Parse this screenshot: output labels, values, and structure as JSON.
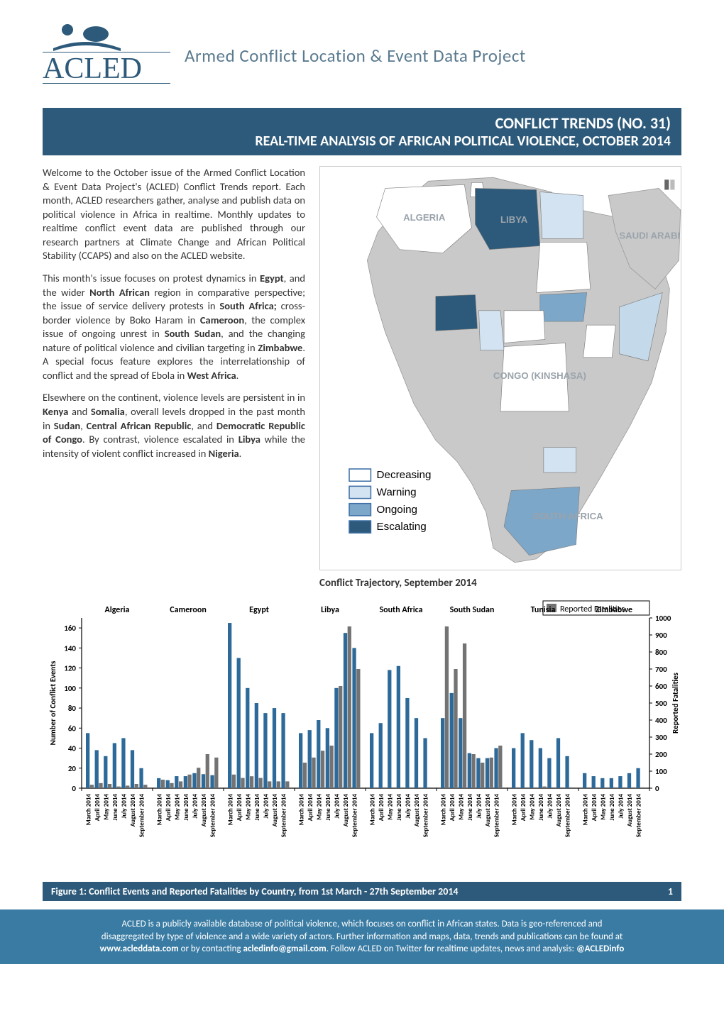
{
  "header": {
    "brand_acronym_top": "ACLED",
    "subtitle": "Armed Conflict Location & Event Data Project",
    "logo_fill": "#2d5a7a"
  },
  "title_bar": {
    "line1": "CONFLICT TRENDS (NO. 31)",
    "line2": "REAL-TIME ANALYSIS OF AFRICAN POLITICAL VIOLENCE, OCTOBER 2014",
    "background": "#2d5a7a",
    "text_color": "#ffffff"
  },
  "intro": {
    "para1": "Welcome to the October issue of the Armed Conflict Location & Event Data Project's (ACLED) Conflict Trends report. Each month, ACLED researchers gather, analyse and publish data on political violence in Africa in realtime. Monthly updates to realtime conflict event data are published through our research partners at Climate Change and African Political Stability (CCAPS) and also on the ACLED website.",
    "para2_leadin": "This month's issue focuses on protest dynamics in ",
    "para2_bold1": "Egypt",
    "para2_t1": ", and the wider ",
    "para2_bold2": "North African",
    "para2_t2": " region in comparative perspective; the issue of service delivery protests in ",
    "para2_bold3": "South Africa;",
    "para2_t3": " cross-border violence by Boko Haram in ",
    "para2_bold4": "Cameroon",
    "para2_t4": ", the complex issue of ongoing unrest in ",
    "para2_bold5": "South Sudan",
    "para2_t5": ", and the changing nature of political violence and civilian targeting in ",
    "para2_bold6": "Zimbabwe",
    "para2_t6": ". A special focus feature explores the interrelationship of conflict and the spread of Ebola in ",
    "para2_bold7": "West Africa",
    "para2_t7": ".",
    "para3_leadin": "Elsewhere on the continent, violence levels are persistent in in ",
    "para3_bold1": "Kenya",
    "para3_t1": " and ",
    "para3_bold2": "Somalia",
    "para3_t2": ", overall levels dropped in the past month in ",
    "para3_bold3": "Sudan",
    "para3_t3": ", ",
    "para3_bold4": "Central African Republic",
    "para3_t4": ", and ",
    "para3_bold5": "Democratic Republic of Congo",
    "para3_t5": ". By contrast, violence escalated in ",
    "para3_bold6": "Libya",
    "para3_t6": " while the intensity of violent conflict increased in ",
    "para3_bold7": "Nigeria",
    "para3_t7": "."
  },
  "map": {
    "caption": "Conflict Trajectory, September 2014",
    "labels": {
      "algeria": "ALGERIA",
      "libya": "LIBYA",
      "saudi": "SAUDI ARABIA",
      "congo": "CONGO (KINSHASA)",
      "southafrica": "SOUTH AFRICA"
    },
    "legend": [
      {
        "label": "Decreasing",
        "fill": "#ffffff",
        "stroke": "#3b6ea5"
      },
      {
        "label": "Warning",
        "fill": "#d3e3f1",
        "stroke": "#3b6ea5"
      },
      {
        "label": "Ongoing",
        "fill": "#7da7c9",
        "stroke": "#3b6ea5"
      },
      {
        "label": "Escalating",
        "fill": "#2d5a7a",
        "stroke": "#3b6ea5"
      }
    ],
    "land_fill": "#c9c9c9",
    "land_stroke": "#9a9a9a",
    "sea_fill": "#ffffff",
    "label_color": "#9aa3ab",
    "region_fills": {
      "Tunisia": "#ffffff",
      "Algeria": "#ffffff",
      "Sudan": "#ffffff",
      "CAR": "#ffffff",
      "DRC": "#ffffff",
      "Kenya": "#ffffff",
      "Egypt": "#d3e3f1",
      "Cameroon": "#d3e3f1",
      "Zimbabwe": "#d3e3f1",
      "Somalia": "#c4d9ea",
      "SouthSudan": "#7da7c9",
      "SouthAfrica": "#7da7c9",
      "Libya": "#2d5a7a",
      "Nigeria": "#2d5a7a"
    }
  },
  "chart": {
    "type": "grouped-bar-dual-axis",
    "countries": [
      "Algeria",
      "Cameroon",
      "Egypt",
      "Libya",
      "South Africa",
      "South Sudan",
      "Tunisia",
      "Zimbabwe"
    ],
    "months": [
      "March 2014",
      "April 2014",
      "May 2014",
      "June 2014",
      "July 2014",
      "August 2014",
      "September 2014"
    ],
    "y_left": {
      "label": "Number of Conflict Events",
      "min": 0,
      "max": 170,
      "ticks": [
        0,
        20,
        40,
        60,
        80,
        100,
        120,
        140,
        160
      ]
    },
    "y_right": {
      "label": "Reported Fatalities",
      "min": 0,
      "max": 1000,
      "ticks": [
        0,
        100,
        200,
        300,
        400,
        500,
        600,
        700,
        800,
        900,
        1000
      ]
    },
    "legend_label": "Reported Fatalities",
    "legend_color": "#737373",
    "bar_color_events": "#2d6a99",
    "bar_color_fatalities": "#737373",
    "background": "#ffffff",
    "axis_color": "#000000",
    "font_size_axis": 11,
    "events": {
      "Algeria": [
        55,
        38,
        32,
        45,
        50,
        38,
        20
      ],
      "Cameroon": [
        10,
        8,
        12,
        12,
        15,
        14,
        13
      ],
      "Egypt": [
        165,
        130,
        100,
        85,
        75,
        80,
        75
      ],
      "Libya": [
        55,
        58,
        68,
        60,
        100,
        155,
        140
      ],
      "South Africa": [
        55,
        65,
        118,
        122,
        90,
        70,
        50
      ],
      "South Sudan": [
        70,
        95,
        70,
        35,
        30,
        30,
        40
      ],
      "Tunisia": [
        40,
        55,
        48,
        40,
        30,
        50,
        32
      ],
      "Zimbabwe": [
        15,
        12,
        10,
        10,
        12,
        15,
        20
      ]
    },
    "fatalities": {
      "Algeria": [
        20,
        30,
        25,
        10,
        15,
        25,
        20
      ],
      "Cameroon": [
        50,
        30,
        40,
        80,
        120,
        200,
        180
      ],
      "Egypt": [
        80,
        60,
        70,
        60,
        40,
        40,
        40
      ],
      "Libya": [
        150,
        180,
        220,
        250,
        600,
        950,
        700
      ],
      "South Africa": [
        5,
        5,
        5,
        5,
        5,
        5,
        5
      ],
      "South Sudan": [
        950,
        700,
        850,
        200,
        150,
        180,
        250
      ],
      "Tunisia": [
        5,
        5,
        5,
        10,
        5,
        5,
        5
      ],
      "Zimbabwe": [
        5,
        5,
        5,
        5,
        5,
        5,
        5
      ]
    }
  },
  "figure_bar": {
    "caption": "Figure 1:  Conflict Events and Reported Fatalities by Country, from 1st March - 27th September 2014",
    "page_number": "1",
    "background": "#2d5a7a"
  },
  "footer": {
    "line1": "ACLED is a publicly available database of political violence, which focuses on conflict in African states. Data is geo-referenced and",
    "line2_a": "disaggregated by type of violence and a wide variety of actors. Further information and maps, data, trends and publications can be found at",
    "line3_site": "www.acleddata.com",
    "line3_mid": " or by contacting ",
    "line3_email": "acledinfo@gmail.com",
    "line3_mid2": ". Follow ACLED on Twitter for realtime updates, news and analysis: ",
    "line3_handle": "@ACLEDinfo",
    "background": "#397ba3"
  }
}
